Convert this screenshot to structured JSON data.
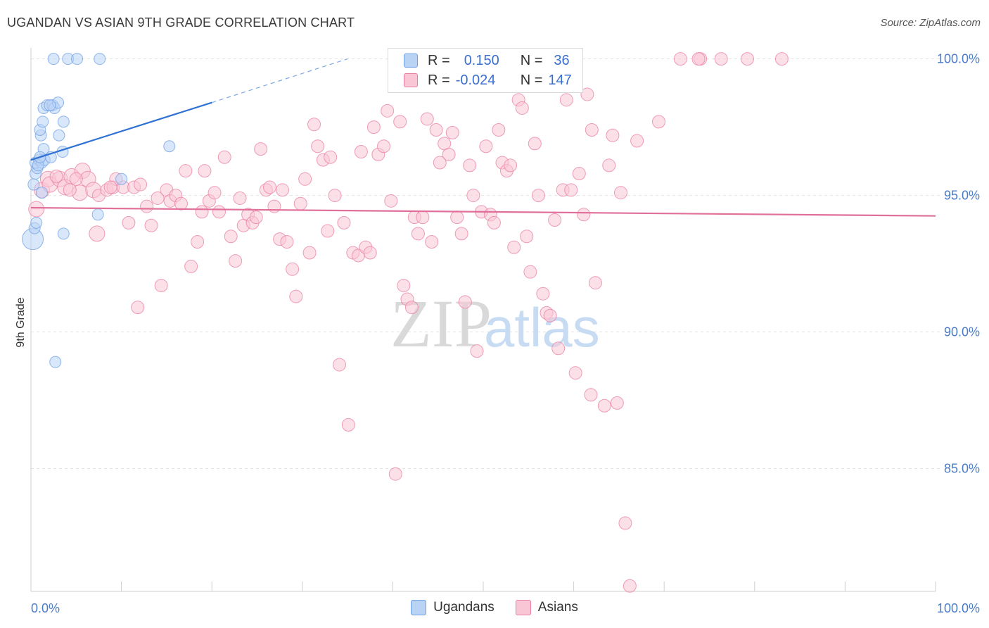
{
  "header": {
    "title": "UGANDAN VS ASIAN 9TH GRADE CORRELATION CHART",
    "source": "Source: ZipAtlas.com"
  },
  "watermark": {
    "zip": "ZIP",
    "atlas": "atlas"
  },
  "legend": {
    "ugandans": {
      "r_label": "R =",
      "r_value": "0.150",
      "n_label": "N =",
      "n_value": "36",
      "color": "#a9c8f3"
    },
    "asians": {
      "r_label": "R =",
      "r_value": "-0.024",
      "n_label": "N =",
      "n_value": "147",
      "color": "#f7b9cc"
    }
  },
  "bottom_legend": {
    "ugandans": "Ugandans",
    "asians": "Asians"
  },
  "chart_data": {
    "type": "scatter",
    "title": "UGANDAN VS ASIAN 9TH GRADE CORRELATION CHART",
    "xlabel": "",
    "ylabel": "9th Grade",
    "xlim": [
      0,
      100
    ],
    "ylim": [
      80.5,
      100.3
    ],
    "x_tick_labels": [
      "0.0%",
      "100.0%"
    ],
    "y_ticks": [
      85,
      90,
      95,
      100
    ],
    "y_tick_labels": [
      "85.0%",
      "90.0%",
      "95.0%",
      "100.0%"
    ],
    "grid": true,
    "series": [
      {
        "name": "Ugandans",
        "color": "#6fa0e4",
        "fill": "#b9d3f5",
        "trend": {
          "x": [
            0,
            20
          ],
          "y": [
            96.3,
            98.4
          ],
          "dashed_to": [
            35,
            100
          ]
        },
        "points": [
          [
            0.2,
            93.4
          ],
          [
            0.4,
            93.8
          ],
          [
            0.6,
            94.0
          ],
          [
            0.3,
            95.4
          ],
          [
            0.5,
            95.8
          ],
          [
            0.7,
            96.0
          ],
          [
            0.5,
            96.2
          ],
          [
            0.9,
            96.3
          ],
          [
            1.2,
            96.2
          ],
          [
            1.5,
            96.3
          ],
          [
            1.4,
            96.7
          ],
          [
            2.2,
            96.4
          ],
          [
            3.5,
            96.6
          ],
          [
            1.1,
            97.2
          ],
          [
            1.0,
            97.4
          ],
          [
            1.3,
            97.7
          ],
          [
            3.1,
            97.2
          ],
          [
            3.6,
            97.7
          ],
          [
            1.4,
            98.2
          ],
          [
            1.8,
            98.3
          ],
          [
            2.4,
            98.3
          ],
          [
            2.6,
            98.2
          ],
          [
            3.0,
            98.4
          ],
          [
            2.5,
            100.0
          ],
          [
            4.1,
            100.0
          ],
          [
            5.1,
            100.0
          ],
          [
            7.6,
            100.0
          ],
          [
            1.2,
            95.1
          ],
          [
            10.0,
            95.6
          ],
          [
            7.4,
            94.3
          ],
          [
            3.6,
            93.6
          ],
          [
            2.7,
            88.9
          ],
          [
            15.3,
            96.8
          ],
          [
            0.8,
            96.1
          ],
          [
            1.0,
            96.4
          ],
          [
            2.1,
            98.3
          ]
        ]
      },
      {
        "name": "Asians",
        "color": "#e87da2",
        "fill": "#f9c6d6",
        "trend": {
          "x": [
            0,
            100
          ],
          "y": [
            94.55,
            94.25
          ]
        },
        "points": [
          [
            0.6,
            94.5
          ],
          [
            1.2,
            95.2
          ],
          [
            1.9,
            95.6
          ],
          [
            2.1,
            95.4
          ],
          [
            3.2,
            95.6
          ],
          [
            3.8,
            95.3
          ],
          [
            4.5,
            95.7
          ],
          [
            5.4,
            95.1
          ],
          [
            5.7,
            95.9
          ],
          [
            6.3,
            95.6
          ],
          [
            6.9,
            95.2
          ],
          [
            7.3,
            93.6
          ],
          [
            7.5,
            95.0
          ],
          [
            8.4,
            95.2
          ],
          [
            9.1,
            95.3
          ],
          [
            9.4,
            95.6
          ],
          [
            10.2,
            95.3
          ],
          [
            10.8,
            94.0
          ],
          [
            11.4,
            95.3
          ],
          [
            12.1,
            95.4
          ],
          [
            11.8,
            90.9
          ],
          [
            12.8,
            94.6
          ],
          [
            13.3,
            93.9
          ],
          [
            14.0,
            94.9
          ],
          [
            14.4,
            91.7
          ],
          [
            15.0,
            95.2
          ],
          [
            15.4,
            94.8
          ],
          [
            16.0,
            95.0
          ],
          [
            16.6,
            94.7
          ],
          [
            17.1,
            95.9
          ],
          [
            17.7,
            92.4
          ],
          [
            18.4,
            93.3
          ],
          [
            18.9,
            94.4
          ],
          [
            19.2,
            95.9
          ],
          [
            19.7,
            94.8
          ],
          [
            20.3,
            95.1
          ],
          [
            20.8,
            94.4
          ],
          [
            21.4,
            96.4
          ],
          [
            22.1,
            93.5
          ],
          [
            22.6,
            92.6
          ],
          [
            23.1,
            94.9
          ],
          [
            23.5,
            93.9
          ],
          [
            24.0,
            94.3
          ],
          [
            24.5,
            94.0
          ],
          [
            24.9,
            94.2
          ],
          [
            25.4,
            96.7
          ],
          [
            26.0,
            95.2
          ],
          [
            26.4,
            95.3
          ],
          [
            26.9,
            94.6
          ],
          [
            27.5,
            93.4
          ],
          [
            27.8,
            95.2
          ],
          [
            28.3,
            93.3
          ],
          [
            28.9,
            92.3
          ],
          [
            29.3,
            91.3
          ],
          [
            29.8,
            94.7
          ],
          [
            30.3,
            95.6
          ],
          [
            30.8,
            92.9
          ],
          [
            31.3,
            97.6
          ],
          [
            31.7,
            96.8
          ],
          [
            32.3,
            96.3
          ],
          [
            32.8,
            93.7
          ],
          [
            33.1,
            96.4
          ],
          [
            33.6,
            95.0
          ],
          [
            34.1,
            88.8
          ],
          [
            34.6,
            94.0
          ],
          [
            35.1,
            86.6
          ],
          [
            35.6,
            92.9
          ],
          [
            36.2,
            92.8
          ],
          [
            36.5,
            96.6
          ],
          [
            37.0,
            93.1
          ],
          [
            37.5,
            92.9
          ],
          [
            37.9,
            97.5
          ],
          [
            38.4,
            96.5
          ],
          [
            39.0,
            96.8
          ],
          [
            39.4,
            98.1
          ],
          [
            39.8,
            94.8
          ],
          [
            40.3,
            84.8
          ],
          [
            40.8,
            97.7
          ],
          [
            41.2,
            91.7
          ],
          [
            41.6,
            91.2
          ],
          [
            42.1,
            90.9
          ],
          [
            42.4,
            94.2
          ],
          [
            42.8,
            93.6
          ],
          [
            43.3,
            94.2
          ],
          [
            43.8,
            97.8
          ],
          [
            44.3,
            93.3
          ],
          [
            44.8,
            97.4
          ],
          [
            45.2,
            96.2
          ],
          [
            45.7,
            96.9
          ],
          [
            46.2,
            96.5
          ],
          [
            46.6,
            97.3
          ],
          [
            47.1,
            94.2
          ],
          [
            47.6,
            93.6
          ],
          [
            48.0,
            91.1
          ],
          [
            48.5,
            96.1
          ],
          [
            48.9,
            95.0
          ],
          [
            49.3,
            89.3
          ],
          [
            49.8,
            94.4
          ],
          [
            50.3,
            96.8
          ],
          [
            50.8,
            94.3
          ],
          [
            51.2,
            94.0
          ],
          [
            51.7,
            97.4
          ],
          [
            52.1,
            96.2
          ],
          [
            52.6,
            95.9
          ],
          [
            53.0,
            96.1
          ],
          [
            53.4,
            93.1
          ],
          [
            53.9,
            98.5
          ],
          [
            54.3,
            98.2
          ],
          [
            54.8,
            93.5
          ],
          [
            55.2,
            92.2
          ],
          [
            55.7,
            96.9
          ],
          [
            56.1,
            95.0
          ],
          [
            56.6,
            91.4
          ],
          [
            57.0,
            90.7
          ],
          [
            57.4,
            90.6
          ],
          [
            57.9,
            94.1
          ],
          [
            58.3,
            89.4
          ],
          [
            58.8,
            95.2
          ],
          [
            59.2,
            98.5
          ],
          [
            59.7,
            95.2
          ],
          [
            60.2,
            88.5
          ],
          [
            60.6,
            95.8
          ],
          [
            61.1,
            94.3
          ],
          [
            61.5,
            98.7
          ],
          [
            61.9,
            87.7
          ],
          [
            62.4,
            91.8
          ],
          [
            63.4,
            87.3
          ],
          [
            63.9,
            96.1
          ],
          [
            64.3,
            97.2
          ],
          [
            64.8,
            87.4
          ],
          [
            65.2,
            95.1
          ],
          [
            65.7,
            83.0
          ],
          [
            66.2,
            80.7
          ],
          [
            67.0,
            97.0
          ],
          [
            69.4,
            97.7
          ],
          [
            71.8,
            100.0
          ],
          [
            74.0,
            100.0
          ],
          [
            76.3,
            100.0
          ],
          [
            79.2,
            100.0
          ],
          [
            83.0,
            100.0
          ],
          [
            73.8,
            100.0
          ],
          [
            62.0,
            97.4
          ],
          [
            2.8,
            95.7
          ],
          [
            5.0,
            95.6
          ],
          [
            8.8,
            95.3
          ],
          [
            4.3,
            95.2
          ]
        ]
      }
    ]
  }
}
